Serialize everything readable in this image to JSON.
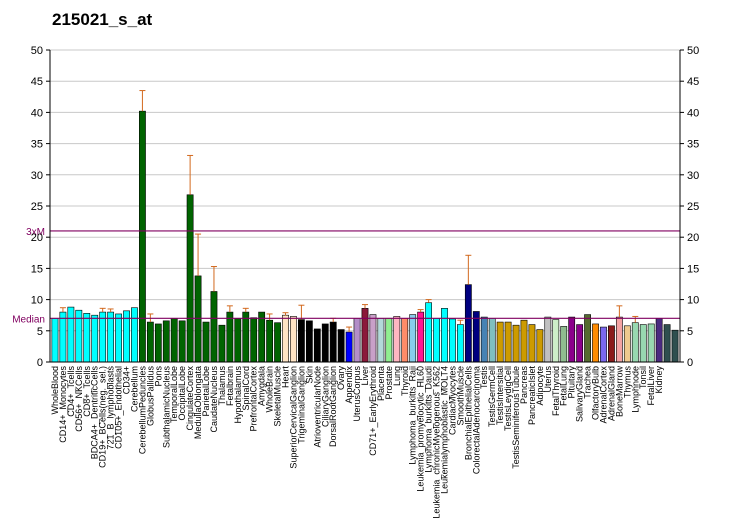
{
  "chart_data": {
    "type": "bar",
    "title": "215021_s_at",
    "ylim": [
      0,
      50
    ],
    "yticks": [
      0,
      5,
      10,
      15,
      20,
      25,
      30,
      35,
      40,
      45,
      50
    ],
    "grid": true,
    "reference_lines": [
      {
        "label": "3xM",
        "value": 21.0,
        "color": "#800060"
      },
      {
        "label": "Median",
        "value": 7.0,
        "color": "#800060"
      }
    ],
    "bars": [
      {
        "label": "WholeBlood",
        "value": 7.0,
        "error": 0,
        "color": "#00ffff"
      },
      {
        "label": "CD14+_Monocytes",
        "value": 8.0,
        "error": 0.7,
        "color": "#00ffff"
      },
      {
        "label": "CD4+_Tcells",
        "value": 8.8,
        "error": 0,
        "color": "#00ffff"
      },
      {
        "label": "CD56+_NKCells",
        "value": 8.3,
        "error": 0,
        "color": "#00ffff"
      },
      {
        "label": "CD8+_Tcells",
        "value": 7.8,
        "error": 0,
        "color": "#00ffff"
      },
      {
        "label": "BDCA4+_DentriticCells",
        "value": 7.5,
        "error": 0,
        "color": "#00ffff"
      },
      {
        "label": "CD19+_BCells(neg._sel.)",
        "value": 8.0,
        "error": 0.6,
        "color": "#00ffff"
      },
      {
        "label": "721_B_lymphoblasts",
        "value": 8.0,
        "error": 0.5,
        "color": "#00ffff"
      },
      {
        "label": "CD105+_Endothelial",
        "value": 7.7,
        "error": 0,
        "color": "#00ffff"
      },
      {
        "label": "CD34+",
        "value": 8.2,
        "error": 0,
        "color": "#00ffff"
      },
      {
        "label": "Cerebellum",
        "value": 8.7,
        "error": 0,
        "color": "#00ffff"
      },
      {
        "label": "CerebellumPeduncles",
        "value": 40.2,
        "error": 3.3,
        "color": "#006400"
      },
      {
        "label": "GlobusPallidus",
        "value": 6.4,
        "error": 1.3,
        "color": "#006400"
      },
      {
        "label": "Pons",
        "value": 6.1,
        "error": 0,
        "color": "#006400"
      },
      {
        "label": "SubthalamicNucleus",
        "value": 6.6,
        "error": 0,
        "color": "#006400"
      },
      {
        "label": "TemporalLobe",
        "value": 7.0,
        "error": 0,
        "color": "#006400"
      },
      {
        "label": "OccipitalLobe",
        "value": 6.6,
        "error": 0,
        "color": "#006400"
      },
      {
        "label": "CingulateCortex",
        "value": 26.8,
        "error": 6.3,
        "color": "#006400"
      },
      {
        "label": "MedullaOblongata",
        "value": 13.8,
        "error": 6.7,
        "color": "#006400"
      },
      {
        "label": "ParietalLobe",
        "value": 6.4,
        "error": 0,
        "color": "#006400"
      },
      {
        "label": "CaudateNucleus",
        "value": 11.3,
        "error": 4.0,
        "color": "#006400"
      },
      {
        "label": "Thalamus",
        "value": 5.9,
        "error": 0,
        "color": "#006400"
      },
      {
        "label": "Fetalbrain",
        "value": 8.0,
        "error": 1.0,
        "color": "#006400"
      },
      {
        "label": "Hypothalamus",
        "value": 7.0,
        "error": 0,
        "color": "#006400"
      },
      {
        "label": "SpinalCord",
        "value": 8.0,
        "error": 0.6,
        "color": "#006400"
      },
      {
        "label": "PrefrontalCortex",
        "value": 7.1,
        "error": 0,
        "color": "#006400"
      },
      {
        "label": "Amygdala",
        "value": 8.0,
        "error": 0,
        "color": "#006400"
      },
      {
        "label": "WholeBrain",
        "value": 6.7,
        "error": 1.0,
        "color": "#006400"
      },
      {
        "label": "SkeletalMuscle",
        "value": 6.3,
        "error": 0,
        "color": "#006400"
      },
      {
        "label": "Heart",
        "value": 7.5,
        "error": 0.4,
        "color": "#ffe4c4"
      },
      {
        "label": "SuperiorCervicalGanglion",
        "value": 7.3,
        "error": 0,
        "color": "#ffe4c4"
      },
      {
        "label": "TrigeminalGanglion",
        "value": 6.8,
        "error": 2.3,
        "color": "#000000"
      },
      {
        "label": "Skin",
        "value": 6.6,
        "error": 0,
        "color": "#000000"
      },
      {
        "label": "AtrioventricularNode",
        "value": 5.3,
        "error": 0,
        "color": "#000000"
      },
      {
        "label": "CiliaryGanglion",
        "value": 6.1,
        "error": 0,
        "color": "#000000"
      },
      {
        "label": "DorsalRootGanglion",
        "value": 6.4,
        "error": 0.6,
        "color": "#000000"
      },
      {
        "label": "Ovary",
        "value": 5.2,
        "error": 0,
        "color": "#000000"
      },
      {
        "label": "Appendix",
        "value": 4.8,
        "error": 0.8,
        "color": "#0000ff"
      },
      {
        "label": "UterusCorpus",
        "value": 7.0,
        "error": 0,
        "color": "#b38ec8"
      },
      {
        "label": "Liver",
        "value": 8.6,
        "error": 0.6,
        "color": "#8b1a3a"
      },
      {
        "label": "CD71+_EarlyErythroid",
        "value": 7.6,
        "error": 0,
        "color": "#c8a0c8"
      },
      {
        "label": "Placenta",
        "value": 7.0,
        "error": 0,
        "color": "#b3d9d9"
      },
      {
        "label": "Prostate",
        "value": 7.0,
        "error": 0,
        "color": "#90ee90"
      },
      {
        "label": "Lung",
        "value": 7.3,
        "error": 0,
        "color": "#ffb6c1"
      },
      {
        "label": "Thyroid",
        "value": 7.0,
        "error": 0,
        "color": "#ff8c69"
      },
      {
        "label": "Lymphoma_burkitts_Raji",
        "value": 7.6,
        "error": 0,
        "color": "#87ceeb"
      },
      {
        "label": "Leukemia_promyelocytic_HL60",
        "value": 8.0,
        "error": 0.4,
        "color": "#ff1493"
      },
      {
        "label": "Lymphoma_burkitts_Daudi",
        "value": 9.5,
        "error": 0.5,
        "color": "#00ffff"
      },
      {
        "label": "Leukemia_chronicMyelogenous_K562",
        "value": 7.0,
        "error": 0,
        "color": "#00ffff"
      },
      {
        "label": "Leukemialymphoblastic_MOLT4",
        "value": 8.6,
        "error": 0,
        "color": "#00ffff"
      },
      {
        "label": "CardiacMyocytes",
        "value": 6.9,
        "error": 0,
        "color": "#00ffff"
      },
      {
        "label": "SmoothMuscle",
        "value": 6.0,
        "error": 0.7,
        "color": "#00ffff"
      },
      {
        "label": "BronchialEpithelialCells",
        "value": 12.4,
        "error": 4.7,
        "color": "#000080"
      },
      {
        "label": "ColorectalAdenocarcinoma",
        "value": 8.1,
        "error": 0,
        "color": "#000080"
      },
      {
        "label": "Testis",
        "value": 7.2,
        "error": 0,
        "color": "#4682b4"
      },
      {
        "label": "TestisGermCell",
        "value": 7.0,
        "error": 0,
        "color": "#7fbfbf"
      },
      {
        "label": "TestisIntersitial",
        "value": 6.4,
        "error": 0,
        "color": "#cd9b00"
      },
      {
        "label": "TestisLeydigCell",
        "value": 6.4,
        "error": 0,
        "color": "#cd9b00"
      },
      {
        "label": "TestisSeminiferousTubule",
        "value": 5.9,
        "error": 0,
        "color": "#cd9b00"
      },
      {
        "label": "Pancreas",
        "value": 6.7,
        "error": 0,
        "color": "#cd9b00"
      },
      {
        "label": "PancreaticIslet",
        "value": 6.0,
        "error": 0,
        "color": "#cd9b00"
      },
      {
        "label": "Adipocyte",
        "value": 5.2,
        "error": 0,
        "color": "#cd9b00"
      },
      {
        "label": "Uterus",
        "value": 7.2,
        "error": 0,
        "color": "#c0c0c0"
      },
      {
        "label": "FetalThyroid",
        "value": 6.8,
        "error": 0,
        "color": "#cdeec8"
      },
      {
        "label": "FetalLung",
        "value": 5.7,
        "error": 0,
        "color": "#8fbc8f"
      },
      {
        "label": "Pituitary",
        "value": 7.2,
        "error": 0,
        "color": "#8b008b"
      },
      {
        "label": "SalivaryGland",
        "value": 6.0,
        "error": 0,
        "color": "#8b008b"
      },
      {
        "label": "Trachea",
        "value": 7.6,
        "error": 0,
        "color": "#556b2f"
      },
      {
        "label": "OlfactoryBulb",
        "value": 6.1,
        "error": 0,
        "color": "#ff8c00"
      },
      {
        "label": "AdrenalCortex",
        "value": 5.6,
        "error": 0,
        "color": "#7b68ee"
      },
      {
        "label": "AdrenalGland",
        "value": 5.8,
        "error": 0,
        "color": "#8b1a1a"
      },
      {
        "label": "BoneMarrow",
        "value": 7.2,
        "error": 1.8,
        "color": "#f4a3a3"
      },
      {
        "label": "Thymus",
        "value": 5.8,
        "error": 0,
        "color": "#eec98e"
      },
      {
        "label": "Lymphnode",
        "value": 6.3,
        "error": 1.0,
        "color": "#98d8b0"
      },
      {
        "label": "Tonsil",
        "value": 6.0,
        "error": 0,
        "color": "#98d8b0"
      },
      {
        "label": "FetalLiver",
        "value": 6.1,
        "error": 0,
        "color": "#98d8b0"
      },
      {
        "label": "Kidney",
        "value": 7.0,
        "error": 0,
        "color": "#4a2a80"
      },
      {
        "label": "",
        "value": 6.0,
        "error": 0,
        "color": "#2f4f4f"
      },
      {
        "label": "",
        "value": 5.1,
        "error": 0,
        "color": "#2f4f4f"
      }
    ]
  }
}
